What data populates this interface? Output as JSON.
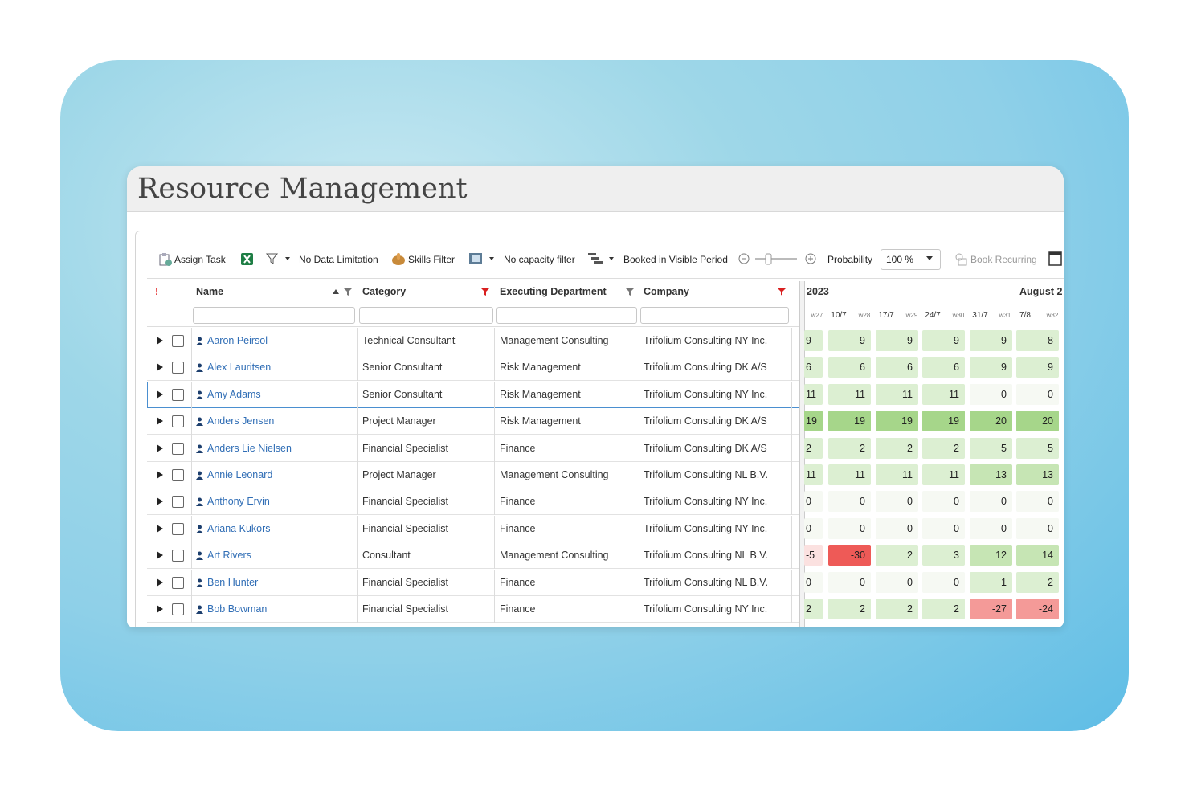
{
  "header": {
    "title": "Resource Management"
  },
  "toolbar": {
    "assign_task": "Assign Task",
    "data_limitation": "No Data Limitation",
    "skills_filter": "Skills Filter",
    "capacity_filter": "No capacity filter",
    "booked_filter": "Booked in Visible Period",
    "probability_label": "Probability",
    "probability_value": "100 %",
    "book_recurring": "Book Recurring"
  },
  "table": {
    "columns": {
      "flag": "!",
      "name": "Name",
      "category": "Category",
      "department": "Executing Department",
      "company": "Company"
    },
    "periods": [
      "2023",
      "August 2"
    ],
    "weeks": [
      "w27",
      "10/7",
      "w28",
      "17/7",
      "w29",
      "24/7",
      "w30",
      "31/7",
      "w31",
      "7/8",
      "w32"
    ],
    "rows": [
      {
        "name": "Aaron Peirsol",
        "category": "Technical Consultant",
        "department": "Management Consulting",
        "company": "Trifolium Consulting NY Inc.",
        "capacity": [
          9,
          9,
          9,
          9,
          9,
          8
        ]
      },
      {
        "name": "Alex Lauritsen",
        "category": "Senior Consultant",
        "department": "Risk Management",
        "company": "Trifolium Consulting DK A/S",
        "capacity": [
          6,
          6,
          6,
          6,
          9,
          9
        ]
      },
      {
        "name": "Amy Adams",
        "category": "Senior Consultant",
        "department": "Risk Management",
        "company": "Trifolium Consulting NY Inc.",
        "capacity": [
          11,
          11,
          11,
          11,
          0,
          0
        ]
      },
      {
        "name": "Anders Jensen",
        "category": "Project Manager",
        "department": "Risk Management",
        "company": "Trifolium Consulting DK A/S",
        "capacity": [
          19,
          19,
          19,
          19,
          20,
          20
        ]
      },
      {
        "name": "Anders Lie Nielsen",
        "category": "Financial Specialist",
        "department": "Finance",
        "company": "Trifolium Consulting DK A/S",
        "capacity": [
          2,
          2,
          2,
          2,
          5,
          5
        ]
      },
      {
        "name": "Annie Leonard",
        "category": "Project Manager",
        "department": "Management Consulting",
        "company": "Trifolium Consulting NL B.V.",
        "capacity": [
          11,
          11,
          11,
          11,
          13,
          13
        ]
      },
      {
        "name": "Anthony Ervin",
        "category": "Financial Specialist",
        "department": "Finance",
        "company": "Trifolium Consulting NY Inc.",
        "capacity": [
          0,
          0,
          0,
          0,
          0,
          0
        ]
      },
      {
        "name": "Ariana Kukors",
        "category": "Financial Specialist",
        "department": "Finance",
        "company": "Trifolium Consulting NY Inc.",
        "capacity": [
          0,
          0,
          0,
          0,
          0,
          0
        ]
      },
      {
        "name": "Art Rivers",
        "category": "Consultant",
        "department": "Management Consulting",
        "company": "Trifolium Consulting NL B.V.",
        "capacity": [
          -5,
          -30,
          2,
          3,
          12,
          14
        ]
      },
      {
        "name": "Ben Hunter",
        "category": "Financial Specialist",
        "department": "Finance",
        "company": "Trifolium Consulting NL B.V.",
        "capacity": [
          0,
          0,
          0,
          0,
          1,
          2
        ]
      },
      {
        "name": "Bob Bowman",
        "category": "Financial Specialist",
        "department": "Finance",
        "company": "Trifolium Consulting NY Inc.",
        "capacity": [
          2,
          2,
          2,
          2,
          -27,
          -24
        ]
      }
    ]
  }
}
